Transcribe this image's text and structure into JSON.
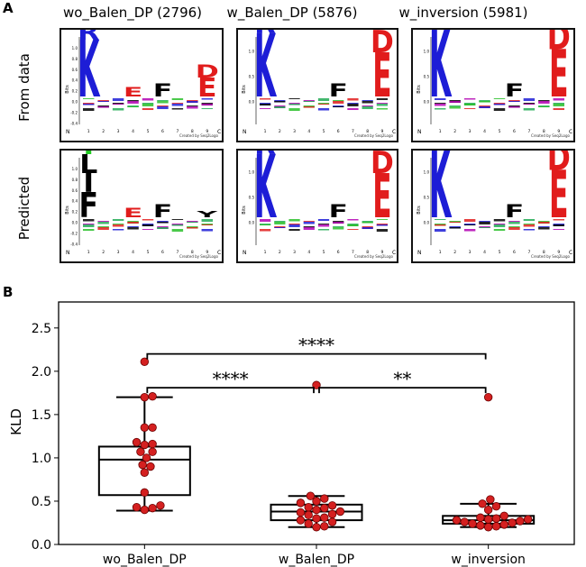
{
  "panel_a": {
    "letter": "A",
    "column_titles": [
      "wo_Balen_DP (2796)",
      "w_Balen_DP (5876)",
      "w_inversion (5981)"
    ],
    "row_labels": [
      "From data",
      "Predicted"
    ],
    "logo_axis_label": "Bits",
    "logo_credit": "Created by Seq2Logo",
    "logo_n_label": "N",
    "logo_c_label": "C",
    "logo_positions": [
      "1",
      "2",
      "3",
      "4",
      "5",
      "6",
      "7",
      "8",
      "9"
    ],
    "logo_yticks_small": [
      "1.0",
      "0.8",
      "0.6",
      "0.4",
      "0.2",
      "0.0",
      "-0.2",
      "-0.4"
    ],
    "logo_yticks_large": [
      "1.0",
      "0.5",
      "0.0"
    ],
    "logos": [
      {
        "row": "From data",
        "column": "wo_Balen_DP (2796)",
        "letters": [
          {
            "pos": 1,
            "aa": "K",
            "color": "#1d1dd6",
            "bits": 0.9
          },
          {
            "pos": 1,
            "aa": "R",
            "color": "#1d1dd6",
            "bits": 0.25
          },
          {
            "pos": 1,
            "aa": "I",
            "color": "#000000",
            "bits": 0.2
          },
          {
            "pos": 1,
            "aa": "L",
            "color": "#000000",
            "bits": 0.15
          },
          {
            "pos": 1,
            "aa": "V",
            "color": "#000000",
            "bits": 0.1
          },
          {
            "pos": 4,
            "aa": "E",
            "color": "#e11c1c",
            "bits": 0.15
          },
          {
            "pos": 6,
            "aa": "F",
            "color": "#000000",
            "bits": 0.2
          },
          {
            "pos": 9,
            "aa": "E",
            "color": "#e11c1c",
            "bits": 0.3
          },
          {
            "pos": 9,
            "aa": "D",
            "color": "#e11c1c",
            "bits": 0.2
          }
        ]
      },
      {
        "row": "From data",
        "column": "w_Balen_DP (5876)",
        "letters": [
          {
            "pos": 1,
            "aa": "K",
            "color": "#1d1dd6",
            "bits": 1.0
          },
          {
            "pos": 1,
            "aa": "R",
            "color": "#1d1dd6",
            "bits": 0.3
          },
          {
            "pos": 6,
            "aa": "F",
            "color": "#000000",
            "bits": 0.2
          },
          {
            "pos": 9,
            "aa": "E",
            "color": "#e11c1c",
            "bits": 0.7
          },
          {
            "pos": 9,
            "aa": "D",
            "color": "#e11c1c",
            "bits": 0.35
          }
        ]
      },
      {
        "row": "From data",
        "column": "w_inversion (5981)",
        "letters": [
          {
            "pos": 1,
            "aa": "K",
            "color": "#1d1dd6",
            "bits": 1.1
          },
          {
            "pos": 1,
            "aa": "R",
            "color": "#1d1dd6",
            "bits": 0.3
          },
          {
            "pos": 6,
            "aa": "F",
            "color": "#000000",
            "bits": 0.2
          },
          {
            "pos": 9,
            "aa": "E",
            "color": "#e11c1c",
            "bits": 0.75
          },
          {
            "pos": 9,
            "aa": "D",
            "color": "#e11c1c",
            "bits": 0.4
          }
        ]
      },
      {
        "row": "Predicted",
        "column": "wo_Balen_DP (2796)",
        "letters": [
          {
            "pos": 1,
            "aa": "F",
            "color": "#000000",
            "bits": 0.4
          },
          {
            "pos": 1,
            "aa": "I",
            "color": "#000000",
            "bits": 0.3
          },
          {
            "pos": 1,
            "aa": "L",
            "color": "#000000",
            "bits": 0.3
          },
          {
            "pos": 1,
            "aa": "Y",
            "color": "#22cc22",
            "bits": 0.15
          },
          {
            "pos": 4,
            "aa": "E",
            "color": "#e11c1c",
            "bits": 0.15
          },
          {
            "pos": 6,
            "aa": "F",
            "color": "#000000",
            "bits": 0.2
          },
          {
            "pos": 9,
            "aa": "Y",
            "color": "#000000",
            "bits": 0.1
          }
        ]
      },
      {
        "row": "Predicted",
        "column": "w_Balen_DP (5876)",
        "letters": [
          {
            "pos": 1,
            "aa": "K",
            "color": "#1d1dd6",
            "bits": 1.0
          },
          {
            "pos": 1,
            "aa": "R",
            "color": "#1d1dd6",
            "bits": 0.3
          },
          {
            "pos": 6,
            "aa": "F",
            "color": "#000000",
            "bits": 0.2
          },
          {
            "pos": 9,
            "aa": "E",
            "color": "#e11c1c",
            "bits": 0.7
          },
          {
            "pos": 9,
            "aa": "D",
            "color": "#e11c1c",
            "bits": 0.35
          }
        ]
      },
      {
        "row": "Predicted",
        "column": "w_inversion (5981)",
        "letters": [
          {
            "pos": 1,
            "aa": "K",
            "color": "#1d1dd6",
            "bits": 1.1
          },
          {
            "pos": 1,
            "aa": "R",
            "color": "#1d1dd6",
            "bits": 0.3
          },
          {
            "pos": 6,
            "aa": "F",
            "color": "#000000",
            "bits": 0.2
          },
          {
            "pos": 9,
            "aa": "E",
            "color": "#e11c1c",
            "bits": 0.75
          },
          {
            "pos": 9,
            "aa": "D",
            "color": "#e11c1c",
            "bits": 0.4
          }
        ]
      }
    ]
  },
  "panel_b": {
    "letter": "B"
  },
  "colors": {
    "point_fill": "#d42020",
    "point_stroke": "#6a0000",
    "box_line": "#000000"
  },
  "chart_data": {
    "type": "box",
    "title": "",
    "xlabel": "",
    "ylabel": "KLD",
    "ylim": [
      0,
      2.8
    ],
    "yticks": [
      0.0,
      0.5,
      1.0,
      1.5,
      2.0,
      2.5
    ],
    "ytick_labels": [
      "0.0",
      "0.5",
      "1.0",
      "1.5",
      "2.0",
      "2.5"
    ],
    "categories": [
      "wo_Balen_DP",
      "w_Balen_DP",
      "w_inversion"
    ],
    "grid": false,
    "boxes": [
      {
        "category": "wo_Balen_DP",
        "whisker_low": 0.39,
        "q1": 0.57,
        "median": 0.98,
        "q3": 1.13,
        "whisker_high": 1.7
      },
      {
        "category": "w_Balen_DP",
        "whisker_low": 0.2,
        "q1": 0.28,
        "median": 0.38,
        "q3": 0.46,
        "whisker_high": 0.56
      },
      {
        "category": "w_inversion",
        "whisker_low": 0.2,
        "q1": 0.24,
        "median": 0.28,
        "q3": 0.33,
        "whisker_high": 0.47
      }
    ],
    "points": [
      {
        "category": "wo_Balen_DP",
        "values": [
          2.11,
          1.71,
          1.7,
          1.35,
          1.35,
          1.18,
          1.16,
          1.15,
          1.07,
          1.07,
          1.0,
          0.92,
          0.9,
          0.83,
          0.6,
          0.45,
          0.43,
          0.42,
          0.4
        ]
      },
      {
        "category": "w_Balen_DP",
        "values": [
          1.84,
          0.56,
          0.53,
          0.5,
          0.48,
          0.45,
          0.43,
          0.42,
          0.4,
          0.38,
          0.37,
          0.35,
          0.34,
          0.31,
          0.3,
          0.28,
          0.26,
          0.24,
          0.21,
          0.2
        ]
      },
      {
        "category": "w_inversion",
        "values": [
          1.7,
          0.52,
          0.47,
          0.44,
          0.4,
          0.33,
          0.31,
          0.3,
          0.29,
          0.29,
          0.28,
          0.27,
          0.26,
          0.25,
          0.24,
          0.23,
          0.22,
          0.21,
          0.2
        ]
      }
    ],
    "significance": [
      {
        "between": [
          "wo_Balen_DP",
          "w_Balen_DP"
        ],
        "label": "****"
      },
      {
        "between": [
          "w_Balen_DP",
          "w_inversion"
        ],
        "label": "**"
      },
      {
        "between": [
          "wo_Balen_DP",
          "w_inversion"
        ],
        "label": "****"
      }
    ]
  }
}
